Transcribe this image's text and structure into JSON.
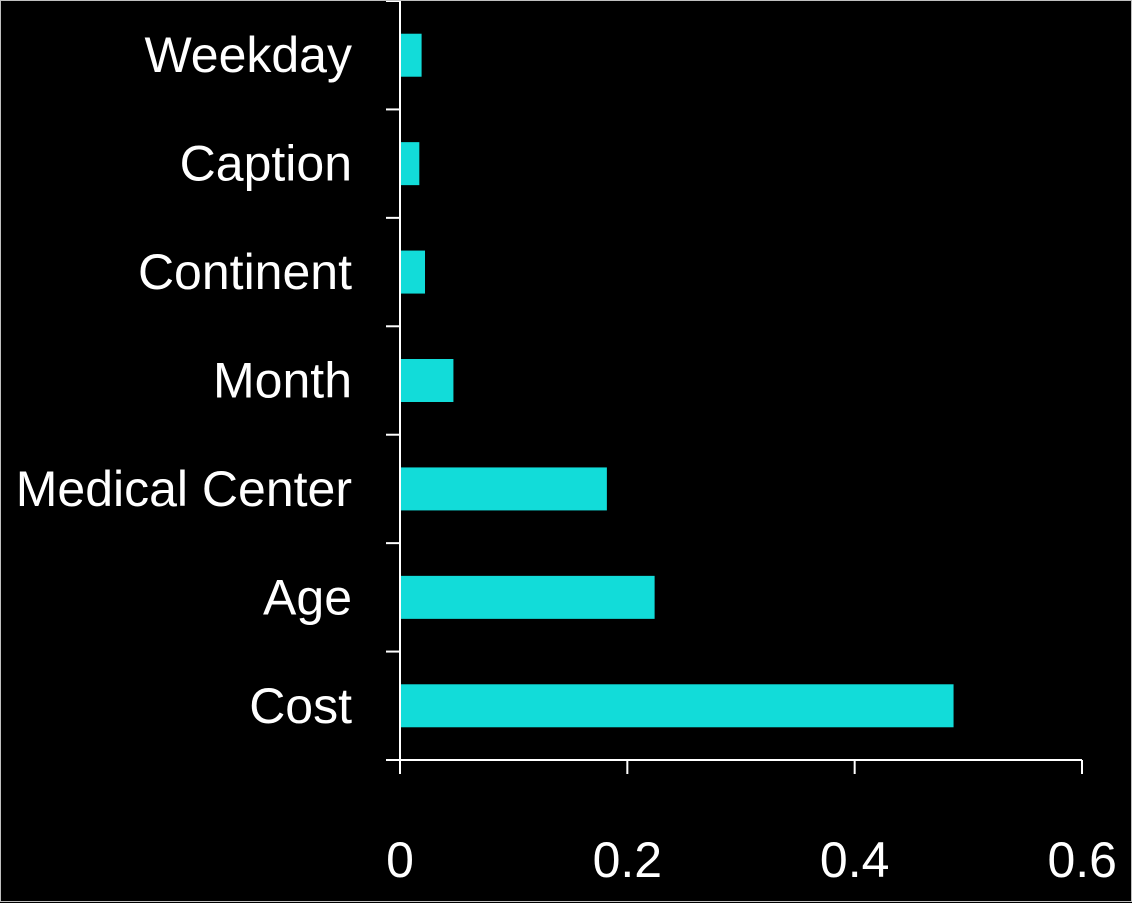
{
  "chart_data": {
    "type": "bar",
    "orientation": "horizontal",
    "title": "",
    "xlabel": "",
    "ylabel": "",
    "categories": [
      "Weekday",
      "Caption",
      "Continent",
      "Month",
      "Medical Center",
      "Age",
      "Cost"
    ],
    "values": [
      0.019,
      0.017,
      0.022,
      0.047,
      0.182,
      0.224,
      0.487
    ],
    "xlim": [
      0,
      0.6
    ],
    "xticks": [
      0,
      0.2,
      0.4,
      0.6
    ],
    "xtick_labels": [
      "0",
      "0.2",
      "0.4",
      "0.6"
    ],
    "grid": false,
    "legend": "none",
    "colors": {
      "bar": "#12dcd9",
      "background": "#000000",
      "axis": "#ffffff",
      "text": "#ffffff"
    }
  }
}
